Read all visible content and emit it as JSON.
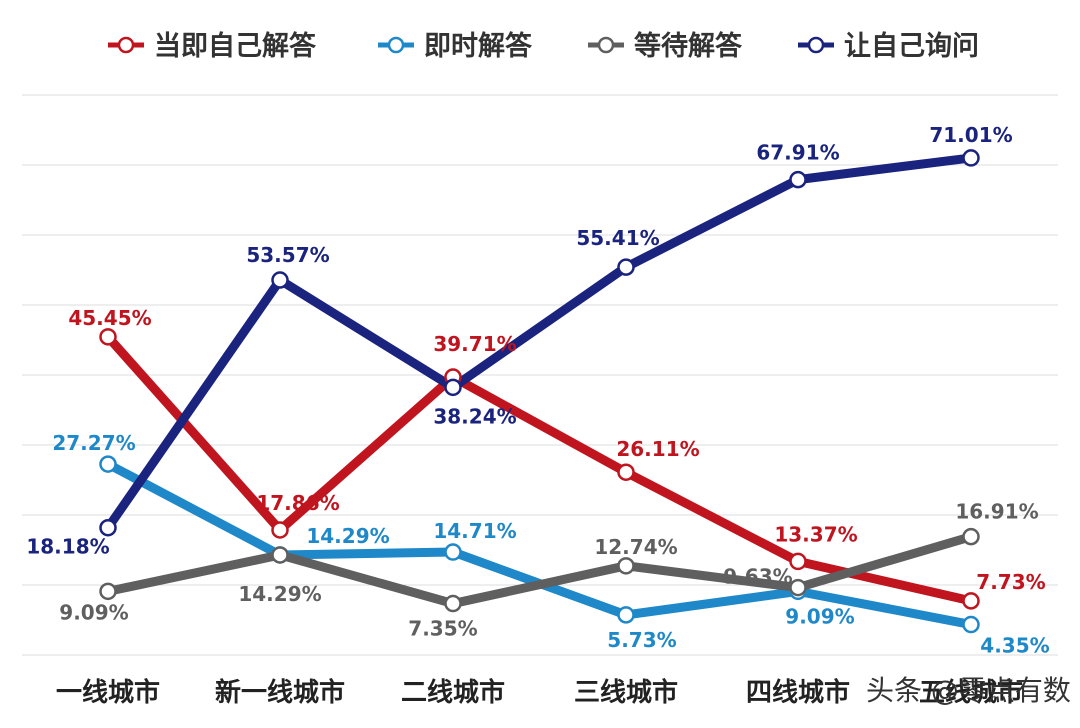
{
  "chart_data": {
    "type": "line",
    "title": "",
    "xlabel": "",
    "ylabel": "",
    "ylim": [
      0,
      80
    ],
    "grid": true,
    "legend_position": "top",
    "categories": [
      "一线城市",
      "新一线城市",
      "二线城市",
      "三线城市",
      "四线城市",
      "五线城市"
    ],
    "series": [
      {
        "name": "当即自己解答",
        "color": "#c0141f",
        "values": [
          45.45,
          17.86,
          39.71,
          26.11,
          13.37,
          7.73
        ],
        "labels": [
          "45.45%",
          "17.86%",
          "39.71%",
          "26.11%",
          "13.37%",
          "7.73%"
        ]
      },
      {
        "name": "即时解答",
        "color": "#1e88c9",
        "values": [
          27.27,
          14.29,
          14.71,
          5.73,
          9.09,
          4.35
        ],
        "labels": [
          "27.27%",
          "14.29%",
          "14.71%",
          "5.73%",
          "9.09%",
          "4.35%"
        ]
      },
      {
        "name": "等待解答",
        "color": "#5f5f5f",
        "values": [
          9.09,
          14.29,
          7.35,
          12.74,
          9.63,
          16.91
        ],
        "labels": [
          "9.09%",
          "14.29%",
          "7.35%",
          "12.74%",
          "9.63%",
          "16.91%"
        ]
      },
      {
        "name": "让自己询问",
        "color": "#1a237e",
        "values": [
          18.18,
          53.57,
          38.24,
          55.41,
          67.91,
          71.01
        ],
        "labels": [
          "18.18%",
          "53.57%",
          "38.24%",
          "55.41%",
          "67.91%",
          "71.01%"
        ]
      }
    ]
  },
  "watermark": "头条 @零点有数"
}
